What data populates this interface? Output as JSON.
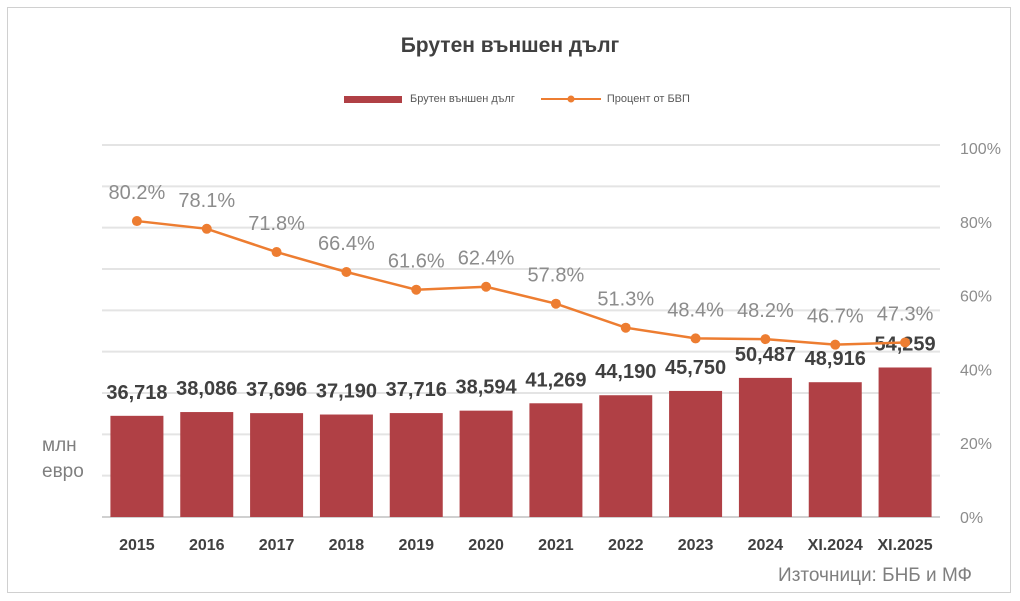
{
  "chart_data": {
    "type": "bar+line",
    "title": "Брутен външен дълг",
    "categories": [
      "2015",
      "2016",
      "2017",
      "2018",
      "2019",
      "2020",
      "2021",
      "2022",
      "2023",
      "2024",
      "XI.2024",
      "XI.2025"
    ],
    "series": [
      {
        "name": "Брутен външен дълг",
        "type": "bar",
        "axis": "left",
        "color": "#b04045",
        "values": [
          36718,
          38086,
          37696,
          37190,
          37716,
          38594,
          41269,
          44190,
          45750,
          50487,
          48916,
          54259
        ],
        "labels": [
          "36,718",
          "38,086",
          "37,696",
          "37,190",
          "37,716",
          "38,594",
          "41,269",
          "44,190",
          "45,750",
          "50,487",
          "48,916",
          "54,259"
        ]
      },
      {
        "name": "Процент от БВП",
        "type": "line",
        "axis": "right",
        "color": "#ed7d31",
        "values": [
          80.2,
          78.1,
          71.8,
          66.4,
          61.6,
          62.4,
          57.8,
          51.3,
          48.4,
          48.2,
          46.7,
          47.3
        ],
        "labels": [
          "80.2%",
          "78.1%",
          "71.8%",
          "66.4%",
          "61.6%",
          "62.4%",
          "57.8%",
          "51.3%",
          "48.4%",
          "48.2%",
          "46.7%",
          "47.3%"
        ]
      }
    ],
    "ylabel": "млн евро",
    "ylim_left": [
      0,
      135000
    ],
    "ylim_right": [
      0,
      100
    ],
    "right_ticks": [
      "0%",
      "20%",
      "40%",
      "60%",
      "80%",
      "100%"
    ],
    "grid": true,
    "legend": "top",
    "source": "Източници: БНБ и МФ"
  }
}
